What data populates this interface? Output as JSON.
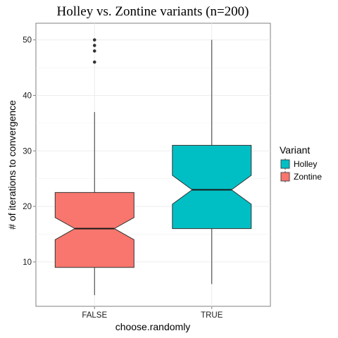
{
  "chart_data": {
    "type": "boxplot",
    "title": "Holley vs. Zontine variants (n=200)",
    "xlabel": "choose.randomly",
    "ylabel": "# of iterations to convergence",
    "categories": [
      "FALSE",
      "TRUE"
    ],
    "ylim": [
      2,
      53
    ],
    "yticks": [
      10,
      20,
      30,
      40,
      50
    ],
    "grid": true,
    "notched": true,
    "legend": {
      "title": "Variant",
      "position": "right",
      "entries": [
        {
          "label": "Holley",
          "color": "#00BFC4"
        },
        {
          "label": "Zontine",
          "color": "#F8766D"
        }
      ]
    },
    "boxes": [
      {
        "category": "FALSE",
        "variant": "Zontine",
        "color": "#F8766D",
        "whisker_low": 4,
        "q1": 9,
        "median": 16,
        "q3": 22.5,
        "whisker_high": 37,
        "notch_low": 14,
        "notch_high": 18,
        "outliers": [
          46,
          48,
          49,
          50
        ]
      },
      {
        "category": "TRUE",
        "variant": "Holley",
        "color": "#00BFC4",
        "whisker_low": 6,
        "q1": 16,
        "median": 23,
        "q3": 31,
        "whisker_high": 50,
        "notch_low": 20.4,
        "notch_high": 25.6,
        "outliers": []
      }
    ]
  }
}
